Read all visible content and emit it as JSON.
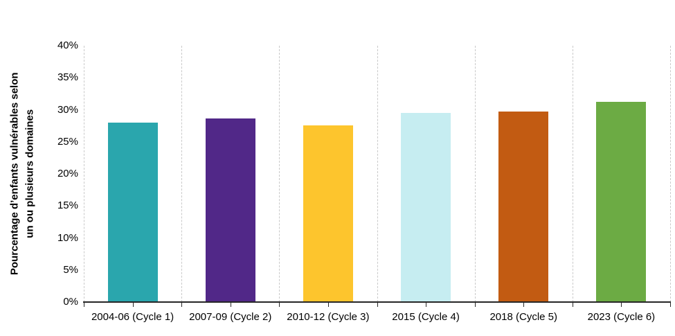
{
  "chart_data": {
    "type": "bar",
    "title": "",
    "ylabel_lines": [
      "Pourcentage d’enfants vulnérables selon",
      "un ou plusieurs domaines"
    ],
    "categories": [
      "2004-06 (Cycle 1)",
      "2007-09 (Cycle 2)",
      "2010-12 (Cycle 3)",
      "2015 (Cycle 4)",
      "2018 (Cycle 5)",
      "2023 (Cycle 6)"
    ],
    "values": [
      28.0,
      28.6,
      27.6,
      29.5,
      29.7,
      31.2
    ],
    "bar_colors": [
      "#2AA6AD",
      "#512888",
      "#FDC52D",
      "#C6EDF1",
      "#C25B12",
      "#6CAB44"
    ],
    "xlabel": "",
    "ylim": [
      0,
      40
    ],
    "yticks": [
      {
        "value": 0,
        "label": "0%"
      },
      {
        "value": 5,
        "label": "5%"
      },
      {
        "value": 10,
        "label": "10%"
      },
      {
        "value": 15,
        "label": "15%"
      },
      {
        "value": 20,
        "label": "20%"
      },
      {
        "value": 25,
        "label": "25%"
      },
      {
        "value": 30,
        "label": "30%"
      },
      {
        "value": 35,
        "label": "35%"
      },
      {
        "value": 40,
        "label": "40%"
      }
    ],
    "grid": "vertical-dashed-at-category-boundaries",
    "gridline_color": "#c9c9c9",
    "axis_color": "#262626",
    "legend": "none"
  }
}
